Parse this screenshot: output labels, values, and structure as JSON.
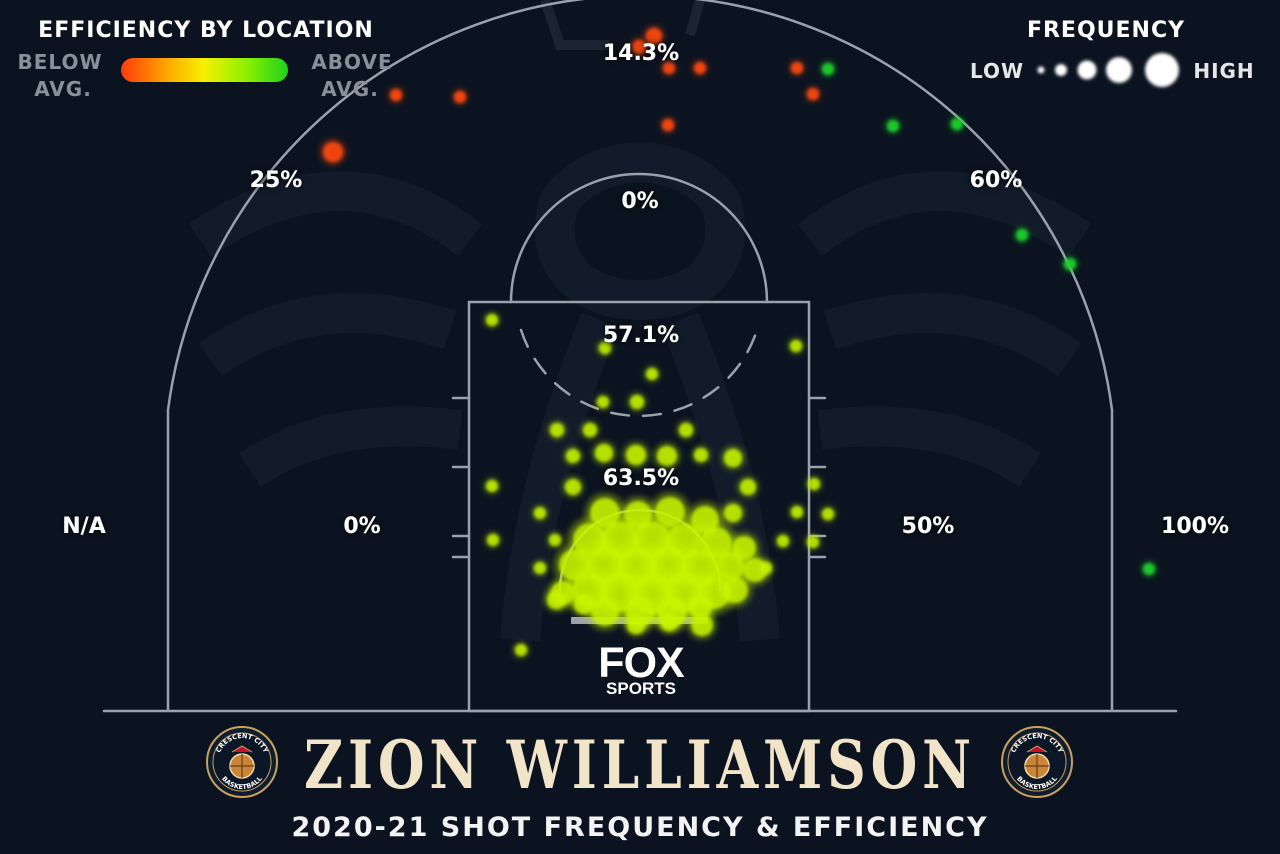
{
  "chart_data": {
    "type": "scatter",
    "title": "ZION WILLIAMSON",
    "subtitle": "2020-21 SHOT FREQUENCY & EFFICIENCY",
    "legend": {
      "efficiency_title": "EFFICIENCY BY LOCATION",
      "below_line1": "BELOW",
      "below_line2": "AVG.",
      "above_line1": "ABOVE",
      "above_line2": "AVG.",
      "frequency_title": "FREQUENCY",
      "low": "LOW",
      "high": "HIGH",
      "gradient_colors": [
        "#ff3a0a",
        "#ffb000",
        "#f4f000",
        "#8cf000",
        "#1ed21e"
      ]
    },
    "zones": [
      {
        "id": "top-3",
        "label": "14.3%"
      },
      {
        "id": "left-wing-3",
        "label": "25%"
      },
      {
        "id": "right-wing-3",
        "label": "60%"
      },
      {
        "id": "top-of-key",
        "label": "0%"
      },
      {
        "id": "free-throw",
        "label": "57.1%"
      },
      {
        "id": "paint",
        "label": "63.5%"
      },
      {
        "id": "left-corner-3",
        "label": "N/A"
      },
      {
        "id": "left-midrange",
        "label": "0%"
      },
      {
        "id": "right-midrange",
        "label": "50%"
      },
      {
        "id": "right-corner-3",
        "label": "100%"
      }
    ],
    "colors": {
      "below": "#ff4a10",
      "above": "#1fd42a",
      "average": "#c8f500",
      "court_lines": "#9aa1ab",
      "background": "#0b1320"
    },
    "branding": {
      "network_line1": "FOX",
      "network_line2": "SPORTS",
      "badge_top": "CRESCENT CITY",
      "badge_bottom": "BASKETBALL"
    }
  }
}
